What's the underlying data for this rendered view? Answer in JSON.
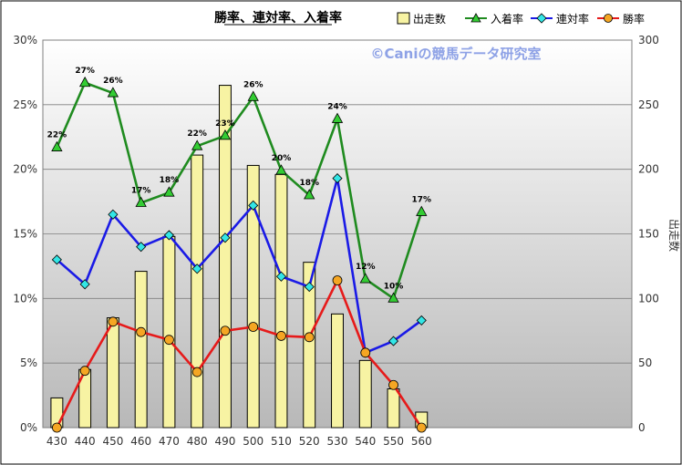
{
  "chart_data": {
    "type": "bar+line",
    "title": "勝率、連対率、入着率",
    "watermark": "©Caniの競馬データ研究室",
    "categories": [
      "430",
      "440",
      "450",
      "460",
      "470",
      "480",
      "490",
      "500",
      "510",
      "520",
      "530",
      "540",
      "550",
      "560"
    ],
    "y_left": {
      "min": 0,
      "max": 30,
      "ticks": [
        "0%",
        "5%",
        "10%",
        "15%",
        "20%",
        "25%",
        "30%"
      ]
    },
    "y_right": {
      "label": "出走数",
      "min": 0,
      "max": 300,
      "ticks": [
        "0",
        "50",
        "100",
        "150",
        "200",
        "250",
        "300"
      ]
    },
    "bars": {
      "name": "出走数",
      "axis": "right",
      "color": "#f7f3a3",
      "values": [
        23,
        45,
        85,
        121,
        148,
        211,
        265,
        203,
        196,
        128,
        88,
        52,
        30,
        12
      ]
    },
    "series": [
      {
        "name": "入着率",
        "axis": "left",
        "color": "#1f8b1f",
        "marker": "triangle",
        "marker_color": "#33cc33",
        "values": [
          21.7,
          26.7,
          25.9,
          17.4,
          18.2,
          21.8,
          22.6,
          25.6,
          19.9,
          18.0,
          23.9,
          11.5,
          10.0,
          16.7
        ],
        "labels": [
          "22%",
          "27%",
          "26%",
          "17%",
          "18%",
          "22%",
          "23%",
          "26%",
          "20%",
          "18%",
          "24%",
          "12%",
          "10%",
          "17%"
        ]
      },
      {
        "name": "連対率",
        "axis": "left",
        "color": "#1a1ae6",
        "marker": "diamond",
        "marker_color": "#33e6e6",
        "values": [
          13.0,
          11.1,
          16.5,
          14.0,
          14.9,
          12.3,
          14.7,
          17.2,
          11.7,
          10.9,
          19.3,
          5.8,
          6.7,
          8.3
        ]
      },
      {
        "name": "勝率",
        "axis": "left",
        "color": "#e61a1a",
        "marker": "circle",
        "marker_color": "#f5a623",
        "values": [
          0.0,
          4.4,
          8.2,
          7.4,
          6.8,
          4.3,
          7.5,
          7.8,
          7.1,
          7.0,
          11.4,
          5.8,
          3.3,
          0.0
        ]
      }
    ],
    "grid": true,
    "legend_position": "top-right"
  }
}
